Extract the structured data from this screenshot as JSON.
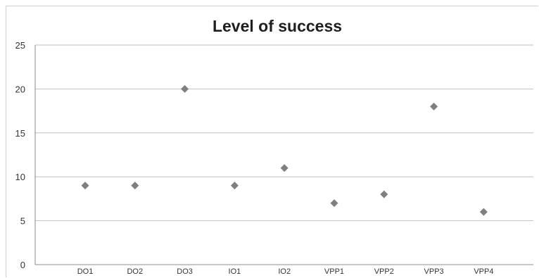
{
  "chart_data": {
    "type": "scatter",
    "title": "Level of success",
    "xlabel": "",
    "ylabel": "",
    "categories": [
      "DO1",
      "DO2",
      "DO3",
      "IO1",
      "IO2",
      "VPP1",
      "VPP2",
      "VPP3",
      "VPP4"
    ],
    "series": [
      {
        "values": [
          9,
          9,
          20,
          9,
          11,
          7,
          8,
          18,
          6
        ]
      }
    ],
    "ylim": [
      0,
      25
    ],
    "yticks": [
      0,
      5,
      10,
      15,
      20,
      25
    ],
    "grid": true,
    "legend": "none",
    "marker": "diamond",
    "colors": {
      "marker": "#7f7f7f",
      "grid": "#bfbfbf",
      "axis": "#8c8c8c"
    }
  }
}
